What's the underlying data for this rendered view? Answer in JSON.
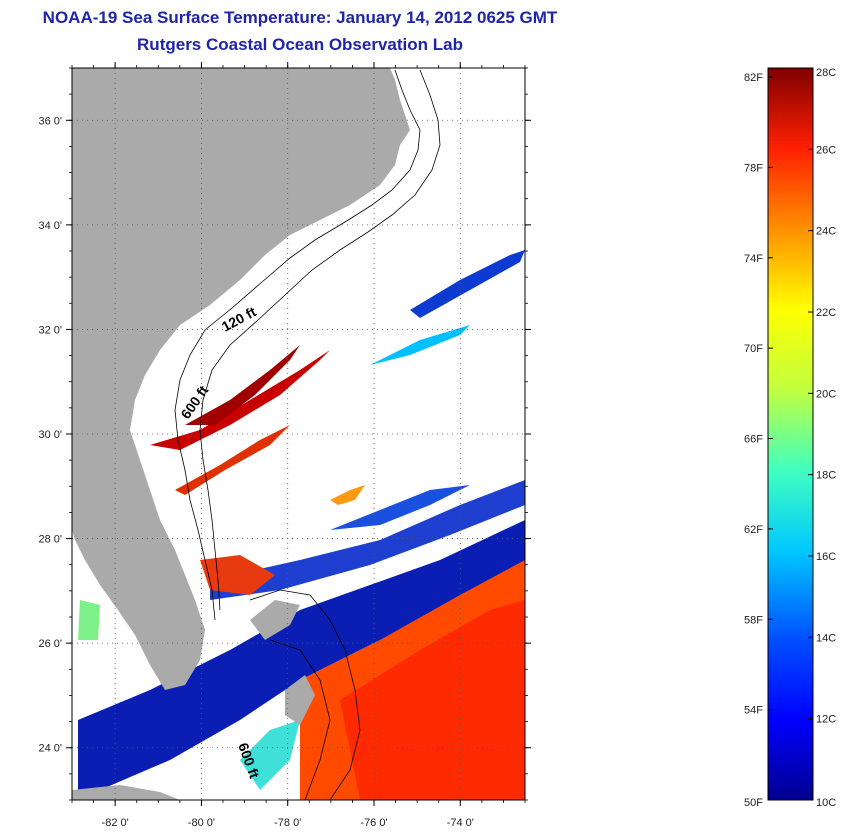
{
  "header": {
    "title": "NOAA-19 Sea Surface Temperature:  January 14, 2012 0625 GMT",
    "subtitle": "Rutgers Coastal Ocean Observation Lab"
  },
  "map": {
    "lon_range": [
      -83,
      -72.5
    ],
    "lat_range": [
      23,
      37
    ],
    "lon_ticks": [
      {
        "value": -82,
        "label": "-82 0'"
      },
      {
        "value": -80,
        "label": "-80 0'"
      },
      {
        "value": -78,
        "label": "-78 0'"
      },
      {
        "value": -76,
        "label": "-76 0'"
      },
      {
        "value": -74,
        "label": "-74 0'"
      }
    ],
    "lat_ticks": [
      {
        "value": 36,
        "label": "36 0'"
      },
      {
        "value": 34,
        "label": "34 0'"
      },
      {
        "value": 32,
        "label": "32 0'"
      },
      {
        "value": 30,
        "label": "30 0'"
      },
      {
        "value": 28,
        "label": "28 0'"
      },
      {
        "value": 26,
        "label": "26 0'"
      },
      {
        "value": 24,
        "label": "24 0'"
      }
    ],
    "contour_labels": [
      "120 ft",
      "600 ft",
      "600 ft"
    ],
    "land_color": "#aaaaaa"
  },
  "colorbar": {
    "min_c": 10,
    "max_c": 28,
    "celsius_labels": [
      {
        "value": 28,
        "label": "28C"
      },
      {
        "value": 26,
        "label": "26C"
      },
      {
        "value": 24,
        "label": "24C"
      },
      {
        "value": 22,
        "label": "22C"
      },
      {
        "value": 20,
        "label": "20C"
      },
      {
        "value": 18,
        "label": "18C"
      },
      {
        "value": 16,
        "label": "16C"
      },
      {
        "value": 14,
        "label": "14C"
      },
      {
        "value": 12,
        "label": "12C"
      },
      {
        "value": 10,
        "label": "10C"
      }
    ],
    "fahrenheit_labels": [
      {
        "value": 82,
        "label": "82F"
      },
      {
        "value": 78,
        "label": "78F"
      },
      {
        "value": 74,
        "label": "74F"
      },
      {
        "value": 70,
        "label": "70F"
      },
      {
        "value": 66,
        "label": "66F"
      },
      {
        "value": 62,
        "label": "62F"
      },
      {
        "value": 58,
        "label": "58F"
      },
      {
        "value": 54,
        "label": "54F"
      },
      {
        "value": 50,
        "label": "50F"
      }
    ]
  }
}
